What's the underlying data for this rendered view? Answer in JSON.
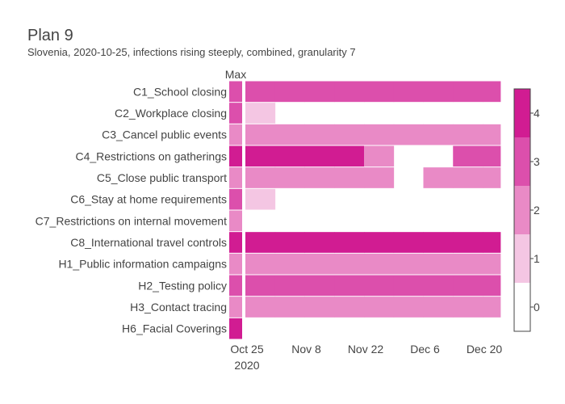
{
  "chart_data": {
    "type": "heatmap",
    "title": "Plan 9",
    "subtitle": "Slovenia, 2020-10-25, infections rising steeply, combined, granularity 7",
    "max_label": "Max",
    "x_tick_labels": [
      "Oct 25",
      "Nov 8",
      "Nov 22",
      "Dec 6",
      "Dec 20"
    ],
    "x_tick_dates": [
      "2020-10-25",
      "2020-11-08",
      "2020-11-22",
      "2020-12-06",
      "2020-12-20"
    ],
    "x_year_label": "2020",
    "periods": [
      {
        "start": "2020-10-25",
        "end": "2020-11-01"
      },
      {
        "start": "2020-11-01",
        "end": "2020-11-08"
      },
      {
        "start": "2020-11-08",
        "end": "2020-11-15"
      },
      {
        "start": "2020-11-15",
        "end": "2020-11-22"
      },
      {
        "start": "2020-11-22",
        "end": "2020-11-29"
      },
      {
        "start": "2020-11-29",
        "end": "2020-12-06"
      },
      {
        "start": "2020-12-06",
        "end": "2020-12-13"
      },
      {
        "start": "2020-12-13",
        "end": "2020-12-20"
      },
      {
        "start": "2020-12-20",
        "end": "2020-12-27"
      }
    ],
    "rows": [
      {
        "name": "C1_School closing",
        "max": 3,
        "values": [
          3,
          3,
          3,
          3,
          3,
          3,
          3,
          3,
          3
        ]
      },
      {
        "name": "C2_Workplace closing",
        "max": 3,
        "values": [
          1,
          null,
          null,
          null,
          null,
          null,
          null,
          null,
          null
        ]
      },
      {
        "name": "C3_Cancel public events",
        "max": 2,
        "values": [
          2,
          2,
          2,
          2,
          2,
          2,
          2,
          2,
          2
        ]
      },
      {
        "name": "C4_Restrictions on gatherings",
        "max": 4,
        "values": [
          4,
          4,
          4,
          4,
          2,
          null,
          null,
          3,
          3
        ]
      },
      {
        "name": "C5_Close public transport",
        "max": 2,
        "values": [
          2,
          2,
          2,
          2,
          2,
          null,
          2,
          2,
          2
        ]
      },
      {
        "name": "C6_Stay at home requirements",
        "max": 3,
        "values": [
          1,
          null,
          null,
          null,
          null,
          null,
          null,
          null,
          null
        ]
      },
      {
        "name": "C7_Restrictions on internal movement",
        "max": 2,
        "values": [
          null,
          null,
          null,
          null,
          null,
          null,
          null,
          null,
          null
        ]
      },
      {
        "name": "C8_International travel controls",
        "max": 4,
        "values": [
          4,
          4,
          4,
          4,
          4,
          4,
          4,
          4,
          4
        ]
      },
      {
        "name": "H1_Public information campaigns",
        "max": 2,
        "values": [
          2,
          2,
          2,
          2,
          2,
          2,
          2,
          2,
          2
        ]
      },
      {
        "name": "H2_Testing policy",
        "max": 3,
        "values": [
          3,
          3,
          3,
          3,
          3,
          3,
          3,
          3,
          3
        ]
      },
      {
        "name": "H3_Contact tracing",
        "max": 2,
        "values": [
          2,
          2,
          2,
          2,
          2,
          2,
          2,
          2,
          2
        ]
      },
      {
        "name": "H6_Facial Coverings",
        "max": 4,
        "values": [
          null,
          null,
          null,
          null,
          null,
          null,
          null,
          null,
          null
        ]
      }
    ],
    "colorscale": {
      "range": [
        -0.5,
        4.5
      ],
      "levels": [
        0,
        1,
        2,
        3,
        4
      ],
      "tick_labels": [
        "0",
        "1",
        "2",
        "3",
        "4"
      ],
      "colors": [
        "#ffffff",
        "#f4c6e3",
        "#e98ac6",
        "#dc4fac",
        "#d11c92"
      ]
    },
    "grid": false,
    "legend": "colorbar right"
  }
}
